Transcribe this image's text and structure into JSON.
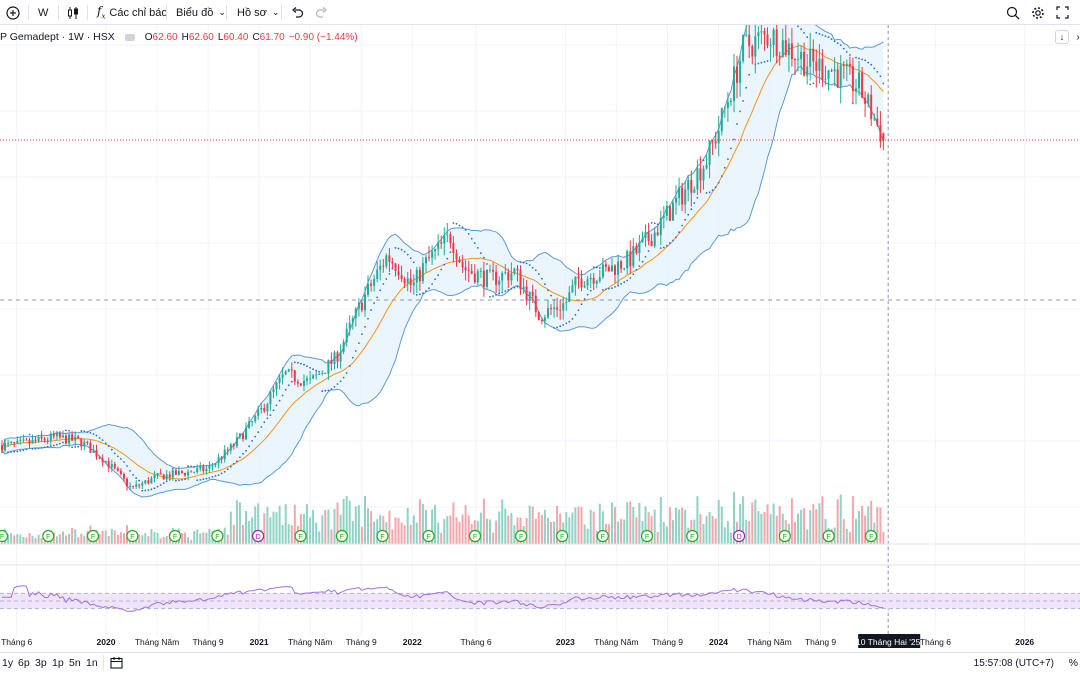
{
  "toolbar": {
    "interval": "W",
    "indicators_label": "Các chỉ báo",
    "chart_type_label": "Biểu đồ",
    "profile_label": "Hồ sơ"
  },
  "legend": {
    "symbol": "P Gemadept · 1W · HSX",
    "o_label": "O",
    "o_value": "62.60",
    "h_label": "H",
    "h_value": "62.60",
    "l_label": "L",
    "l_value": "60.40",
    "c_label": "C",
    "c_value": "61.70",
    "change": "−0.90 (−1.44%)"
  },
  "bottom": {
    "ranges": [
      "1y",
      "6p",
      "3p",
      "1p",
      "5n",
      "1n"
    ],
    "clock": "15:57:08 (UTC+7)",
    "percent_label": "%"
  },
  "colors": {
    "up": "#22ab94",
    "down": "#f23645",
    "bb_fill": "#e3f2fd",
    "bb_line": "#5b9bd5",
    "ma": "#f7931a",
    "sar": "#2a6dd6",
    "rsi": "#a371e0",
    "rsi_band": "#efe4fc"
  },
  "chart_data": [
    {
      "type": "candlestick",
      "x_axis": [
        "Tháng 6",
        "2020",
        "Tháng Năm",
        "Tháng 9",
        "2021",
        "Tháng Năm",
        "Tháng 9",
        "2022",
        "Tháng 6",
        "2023",
        "Tháng Năm",
        "Tháng 9",
        "2024",
        "Tháng Năm",
        "Tháng 9",
        "10 Tháng Hai '25",
        "Tháng 6",
        "2026"
      ],
      "x_dates": [
        "2019-06",
        "2020-01",
        "2020-05",
        "2020-09",
        "2021-01",
        "2021-05",
        "2021-09",
        "2022-01",
        "2022-06",
        "2023-01",
        "2023-05",
        "2023-09",
        "2024-01",
        "2024-05",
        "2024-09",
        "2025-02-10",
        "2025-06",
        "2026-01"
      ],
      "price_path": [
        [
          "2019-06",
          23.0
        ],
        [
          "2019-09",
          24.0
        ],
        [
          "2019-11",
          23.5
        ],
        [
          "2020-01",
          21.0
        ],
        [
          "2020-03",
          17.5
        ],
        [
          "2020-05",
          19.0
        ],
        [
          "2020-07",
          19.5
        ],
        [
          "2020-09",
          20.0
        ],
        [
          "2020-11",
          23.0
        ],
        [
          "2021-01",
          27.0
        ],
        [
          "2021-03",
          32.0
        ],
        [
          "2021-05",
          31.0
        ],
        [
          "2021-07",
          34.0
        ],
        [
          "2021-09",
          41.0
        ],
        [
          "2021-11",
          47.0
        ],
        [
          "2021-12",
          45.5
        ],
        [
          "2022-01",
          43.0
        ],
        [
          "2022-02",
          46.0
        ],
        [
          "2022-04",
          49.5
        ],
        [
          "2022-05",
          45.5
        ],
        [
          "2022-07",
          44.0
        ],
        [
          "2022-09",
          45.0
        ],
        [
          "2022-11",
          39.5
        ],
        [
          "2023-01",
          41.0
        ],
        [
          "2023-02",
          44.0
        ],
        [
          "2023-04",
          45.0
        ],
        [
          "2023-06",
          46.5
        ],
        [
          "2023-08",
          50.0
        ],
        [
          "2023-10",
          54.5
        ],
        [
          "2023-12",
          59.0
        ],
        [
          "2024-01",
          63.0
        ],
        [
          "2024-03",
          73.5
        ],
        [
          "2024-05",
          75.0
        ],
        [
          "2024-06",
          74.0
        ],
        [
          "2024-08",
          71.5
        ],
        [
          "2024-10",
          70.5
        ],
        [
          "2024-12",
          68.5
        ],
        [
          "2025-02",
          61.7
        ]
      ],
      "last_bar": {
        "open": 62.6,
        "high": 62.6,
        "low": 60.4,
        "close": 61.7,
        "change": -0.9,
        "change_pct": -1.44
      },
      "overlays": [
        "Bollinger Bands",
        "Moving Average",
        "Parabolic SAR"
      ],
      "volume": true,
      "events": [
        "F",
        "D"
      ]
    },
    {
      "type": "line",
      "name": "RSI",
      "band": [
        30,
        70
      ]
    }
  ]
}
